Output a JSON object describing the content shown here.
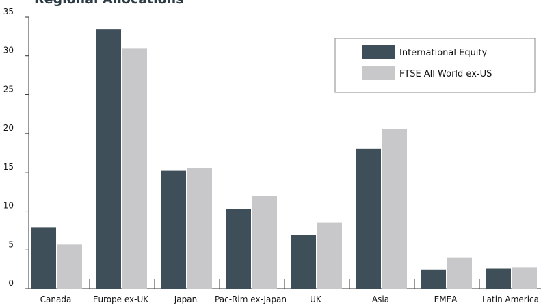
{
  "chart_data": {
    "type": "bar",
    "title": "Regional Allocations",
    "xlabel": "",
    "ylabel": "",
    "categories": [
      "Canada",
      "Europe ex-UK",
      "Japan",
      "Pac-Rim ex-Japan",
      "UK",
      "Asia",
      "EMEA",
      "Latin America"
    ],
    "series": [
      {
        "name": "International Equity",
        "color": "#3e4f59",
        "values": [
          7.9,
          33.4,
          15.2,
          10.3,
          6.9,
          18.0,
          2.4,
          2.6
        ]
      },
      {
        "name": "FTSE All World ex-US",
        "color": "#c8c8ca",
        "values": [
          5.7,
          31.0,
          15.6,
          11.9,
          8.5,
          20.6,
          4.0,
          2.7
        ]
      }
    ],
    "ylim": [
      0,
      35
    ],
    "yticks": [
      0,
      5,
      10,
      15,
      20,
      25,
      30,
      35
    ],
    "grid": false,
    "legend_position": "top-right"
  }
}
